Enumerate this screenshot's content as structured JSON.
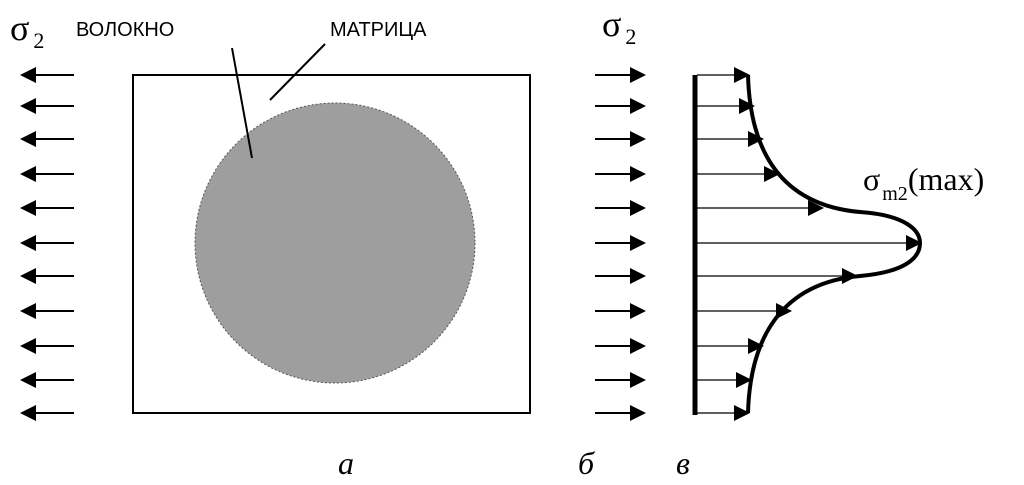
{
  "labels": {
    "left_stress": {
      "symbol": "σ",
      "subscript": "2"
    },
    "fiber": "ВОЛОКНО",
    "matrix": "МАТРИЦА",
    "right_stress": {
      "symbol": "σ",
      "subscript": "2"
    },
    "max_stress": {
      "symbol": "σ",
      "subscript": "m2",
      "suffix": "(max)"
    },
    "panel_a": "а",
    "panel_b": "б",
    "panel_c": "в"
  }
}
